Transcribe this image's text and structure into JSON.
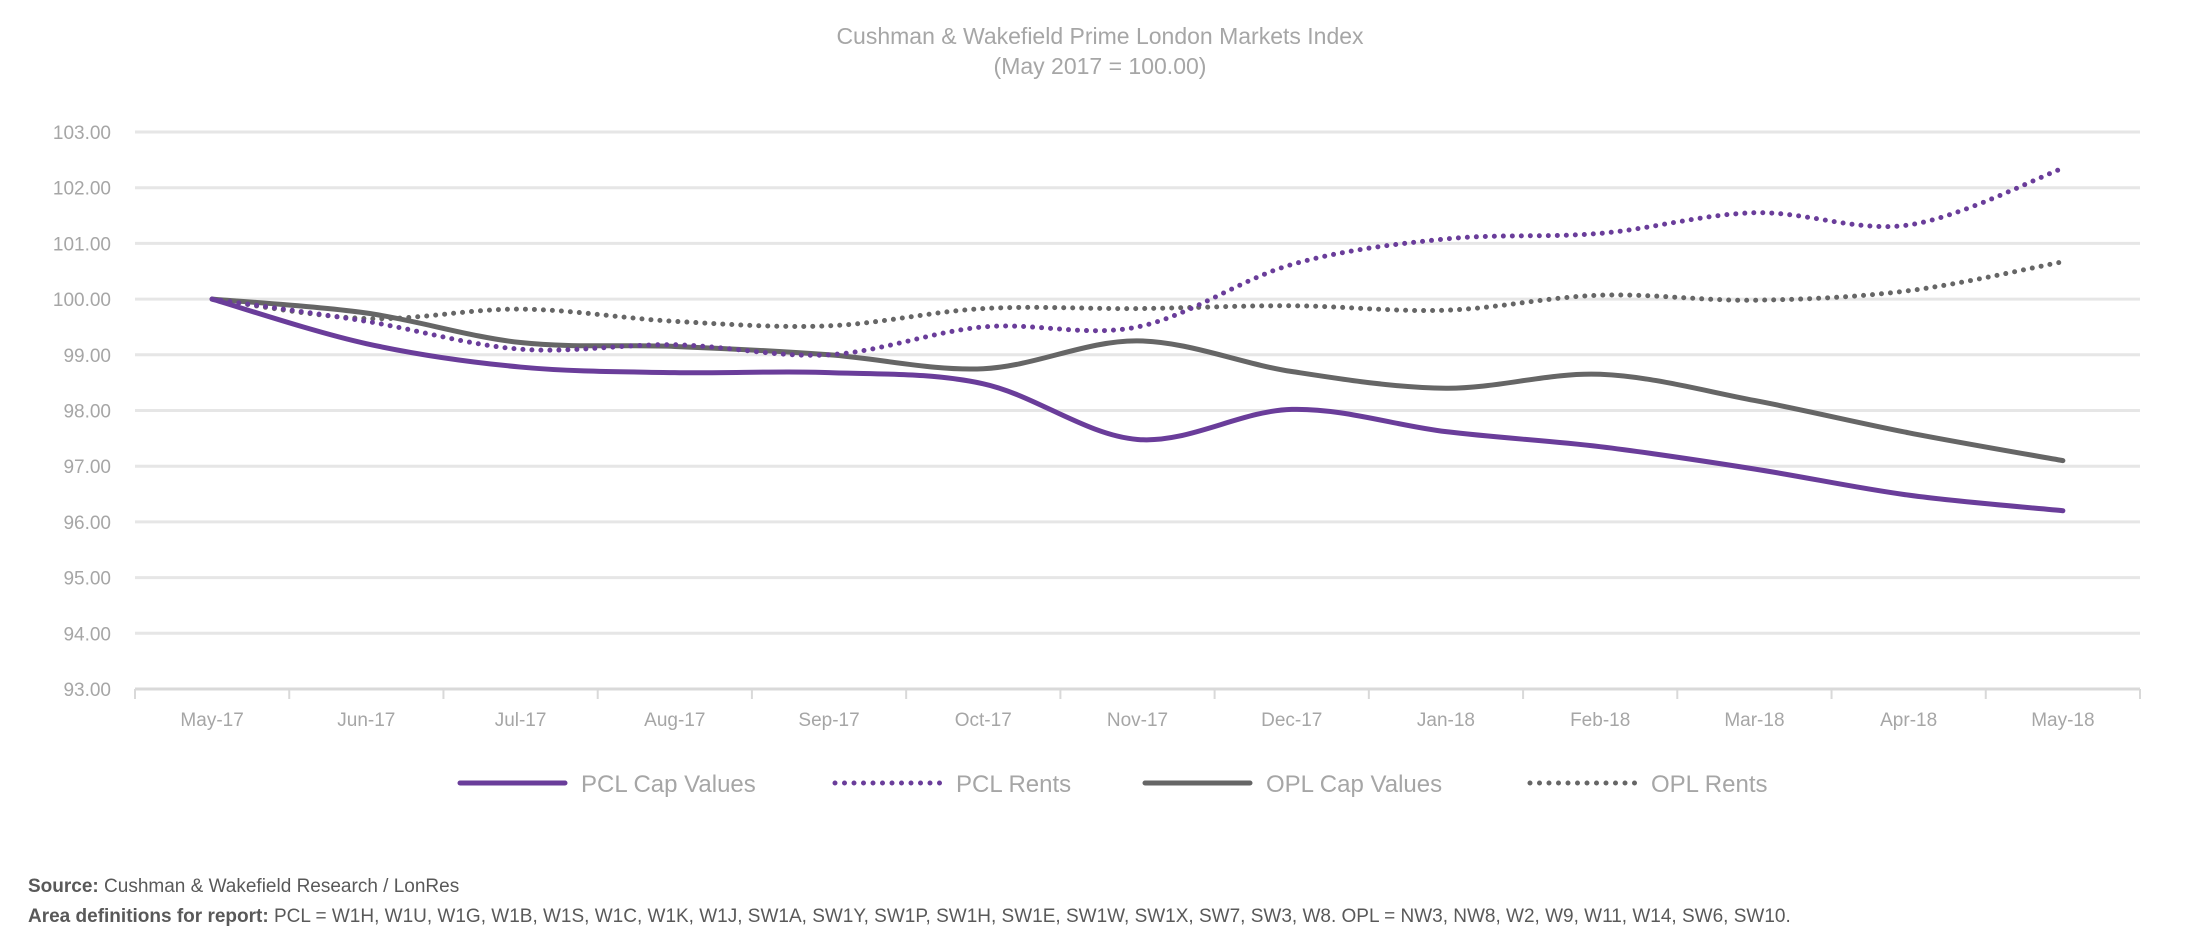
{
  "chart_data": {
    "type": "line",
    "title": "Cushman & Wakefield Prime London Markets Index",
    "subtitle": "(May 2017 = 100.00)",
    "xlabel": "",
    "ylabel": "",
    "categories": [
      "May-17",
      "Jun-17",
      "Jul-17",
      "Aug-17",
      "Sep-17",
      "Oct-17",
      "Nov-17",
      "Dec-17",
      "Jan-18",
      "Feb-18",
      "Mar-18",
      "Apr-18",
      "May-18"
    ],
    "ylim": [
      93,
      103
    ],
    "yticks": [
      "93.00",
      "94.00",
      "95.00",
      "96.00",
      "97.00",
      "98.00",
      "99.00",
      "100.00",
      "101.00",
      "102.00",
      "103.00"
    ],
    "grid": true,
    "smoothed": true,
    "legend_position": "bottom",
    "series": [
      {
        "name": "PCL Cap Values",
        "style": "solid",
        "color": "#6a3d9a",
        "values": [
          100.0,
          99.2,
          98.78,
          98.68,
          98.68,
          98.48,
          97.48,
          98.02,
          97.62,
          97.35,
          96.95,
          96.48,
          96.2
        ]
      },
      {
        "name": "PCL Rents",
        "style": "dotted",
        "color": "#6a3d9a",
        "values": [
          100.0,
          99.6,
          99.1,
          99.18,
          99.0,
          99.5,
          99.5,
          100.62,
          101.08,
          101.18,
          101.55,
          101.33,
          102.35
        ]
      },
      {
        "name": "OPL Cap Values",
        "style": "solid",
        "color": "#666666",
        "values": [
          100.0,
          99.75,
          99.22,
          99.15,
          99.0,
          98.75,
          99.25,
          98.7,
          98.4,
          98.65,
          98.18,
          97.6,
          97.1
        ]
      },
      {
        "name": "OPL Rents",
        "style": "dotted",
        "color": "#666666",
        "values": [
          100.0,
          99.65,
          99.82,
          99.6,
          99.52,
          99.83,
          99.83,
          99.88,
          99.8,
          100.07,
          99.98,
          100.15,
          100.67
        ]
      }
    ]
  },
  "footer": {
    "source_label": "Source:",
    "source_text": " Cushman & Wakefield Research / LonRes",
    "areas_label": "Area definitions for report:",
    "areas_text": " PCL = W1H, W1U, W1G, W1B, W1S, W1C, W1K, W1J, SW1A, SW1Y, SW1P, SW1H, SW1E, SW1W, SW1X, SW7, SW3, W8.  OPL = NW3, NW8, W2, W9, W11, W14, SW6, SW10."
  }
}
